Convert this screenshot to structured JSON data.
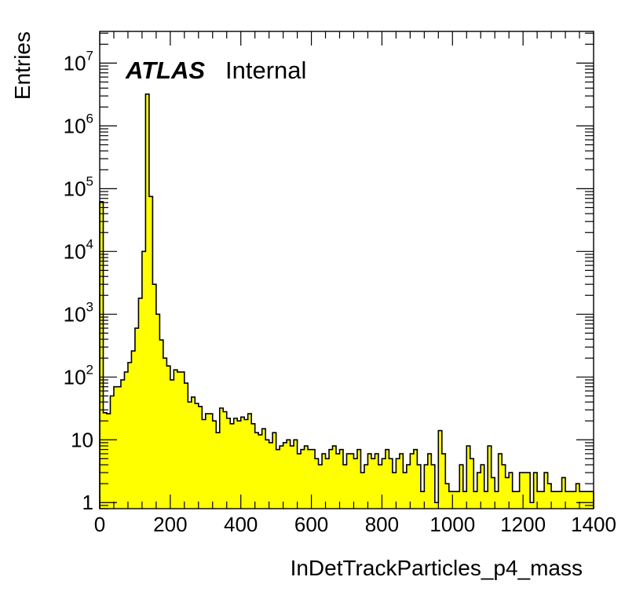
{
  "chart_data": {
    "type": "bar",
    "histogram": true,
    "xlabel": "InDetTrackParticles_p4_mass",
    "ylabel": "Entries",
    "xlim": [
      0,
      1400
    ],
    "ylim": [
      0.8,
      32000000
    ],
    "log_y": true,
    "grid": false,
    "fill_color": "#ffff00",
    "line_color": "#000000",
    "label": {
      "atlas": "ATLAS",
      "status": "Internal"
    },
    "x_ticks": [
      {
        "value": 0,
        "label": "0"
      },
      {
        "value": 200,
        "label": "200"
      },
      {
        "value": 400,
        "label": "400"
      },
      {
        "value": 600,
        "label": "600"
      },
      {
        "value": 800,
        "label": "800"
      },
      {
        "value": 1000,
        "label": "1000"
      },
      {
        "value": 1200,
        "label": "1200"
      },
      {
        "value": 1400,
        "label": "1400"
      }
    ],
    "y_ticks": [
      {
        "value": 1,
        "base": "1",
        "exp": ""
      },
      {
        "value": 10,
        "base": "10",
        "exp": ""
      },
      {
        "value": 100,
        "base": "10",
        "exp": "2"
      },
      {
        "value": 1000,
        "base": "10",
        "exp": "3"
      },
      {
        "value": 10000,
        "base": "10",
        "exp": "4"
      },
      {
        "value": 100000,
        "base": "10",
        "exp": "5"
      },
      {
        "value": 1000000,
        "base": "10",
        "exp": "6"
      },
      {
        "value": 10000000,
        "base": "10",
        "exp": "7"
      }
    ],
    "bin_width": 10,
    "bins": [
      [
        0,
        62000
      ],
      [
        10,
        27
      ],
      [
        20,
        26
      ],
      [
        30,
        50
      ],
      [
        40,
        70
      ],
      [
        50,
        70
      ],
      [
        60,
        90
      ],
      [
        70,
        120
      ],
      [
        80,
        170
      ],
      [
        90,
        260
      ],
      [
        100,
        600
      ],
      [
        110,
        1800
      ],
      [
        120,
        10000
      ],
      [
        130,
        3200000
      ],
      [
        140,
        75000
      ],
      [
        150,
        3000
      ],
      [
        160,
        1000
      ],
      [
        170,
        390
      ],
      [
        180,
        200
      ],
      [
        190,
        150
      ],
      [
        200,
        90
      ],
      [
        210,
        130
      ],
      [
        220,
        120
      ],
      [
        230,
        120
      ],
      [
        240,
        80
      ],
      [
        250,
        40
      ],
      [
        260,
        48
      ],
      [
        270,
        38
      ],
      [
        280,
        34
      ],
      [
        290,
        21
      ],
      [
        300,
        26
      ],
      [
        310,
        26
      ],
      [
        320,
        20
      ],
      [
        330,
        13
      ],
      [
        340,
        32
      ],
      [
        350,
        28
      ],
      [
        360,
        22
      ],
      [
        370,
        18
      ],
      [
        380,
        22
      ],
      [
        390,
        20
      ],
      [
        400,
        23
      ],
      [
        410,
        21
      ],
      [
        420,
        26
      ],
      [
        430,
        18
      ],
      [
        440,
        13
      ],
      [
        450,
        12
      ],
      [
        460,
        15
      ],
      [
        470,
        10
      ],
      [
        480,
        9
      ],
      [
        490,
        13
      ],
      [
        500,
        7
      ],
      [
        510,
        8
      ],
      [
        520,
        9
      ],
      [
        530,
        10
      ],
      [
        540,
        8
      ],
      [
        550,
        10
      ],
      [
        560,
        6
      ],
      [
        570,
        7
      ],
      [
        580,
        8
      ],
      [
        590,
        7
      ],
      [
        600,
        7
      ],
      [
        610,
        5
      ],
      [
        620,
        4
      ],
      [
        630,
        6
      ],
      [
        640,
        5
      ],
      [
        650,
        7
      ],
      [
        660,
        8
      ],
      [
        670,
        6
      ],
      [
        680,
        7
      ],
      [
        690,
        4
      ],
      [
        700,
        6
      ],
      [
        710,
        6
      ],
      [
        720,
        5
      ],
      [
        730,
        7
      ],
      [
        740,
        3
      ],
      [
        750,
        4
      ],
      [
        760,
        6
      ],
      [
        770,
        5
      ],
      [
        780,
        6
      ],
      [
        790,
        4
      ],
      [
        800,
        5
      ],
      [
        810,
        7
      ],
      [
        820,
        5
      ],
      [
        830,
        3
      ],
      [
        840,
        5
      ],
      [
        850,
        6
      ],
      [
        860,
        3
      ],
      [
        870,
        4
      ],
      [
        880,
        6
      ],
      [
        890,
        7
      ],
      [
        900,
        4
      ],
      [
        910,
        1.5
      ],
      [
        920,
        4
      ],
      [
        930,
        6
      ],
      [
        940,
        4
      ],
      [
        950,
        1.0
      ],
      [
        960,
        14
      ],
      [
        970,
        6
      ],
      [
        980,
        2
      ],
      [
        990,
        1.5
      ],
      [
        1000,
        1.5
      ],
      [
        1010,
        1.5
      ],
      [
        1020,
        4
      ],
      [
        1030,
        1.5
      ],
      [
        1040,
        8
      ],
      [
        1050,
        5
      ],
      [
        1060,
        1.5
      ],
      [
        1070,
        3
      ],
      [
        1080,
        4
      ],
      [
        1090,
        1.5
      ],
      [
        1100,
        8
      ],
      [
        1110,
        2.5
      ],
      [
        1120,
        1.5
      ],
      [
        1130,
        6
      ],
      [
        1140,
        4
      ],
      [
        1150,
        2.5
      ],
      [
        1160,
        3
      ],
      [
        1170,
        1.5
      ],
      [
        1180,
        1.5
      ],
      [
        1190,
        3
      ],
      [
        1200,
        3
      ],
      [
        1210,
        3
      ],
      [
        1220,
        1
      ],
      [
        1230,
        3
      ],
      [
        1240,
        1.5
      ],
      [
        1250,
        1.5
      ],
      [
        1260,
        3
      ],
      [
        1270,
        2
      ],
      [
        1280,
        1.5
      ],
      [
        1290,
        1.5
      ],
      [
        1300,
        1.5
      ],
      [
        1310,
        2.5
      ],
      [
        1320,
        1.5
      ],
      [
        1330,
        1.5
      ],
      [
        1340,
        1.5
      ],
      [
        1350,
        2
      ],
      [
        1360,
        1.5
      ],
      [
        1370,
        1.5
      ],
      [
        1380,
        1.5
      ],
      [
        1390,
        1.5
      ]
    ]
  }
}
